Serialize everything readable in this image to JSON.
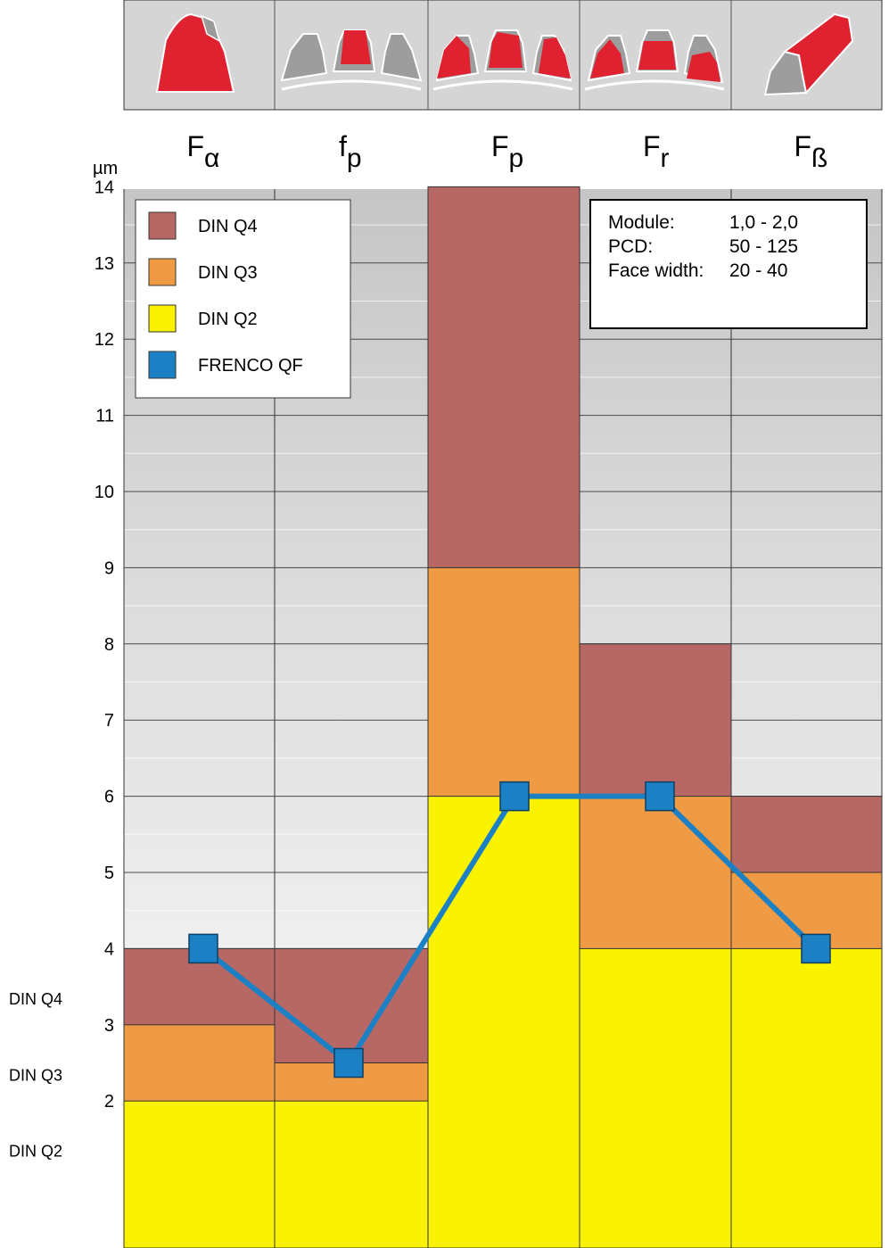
{
  "chart_data": {
    "type": "bar",
    "unit_label": "µm",
    "categories": [
      {
        "main": "F",
        "sub": "α"
      },
      {
        "main": "f",
        "sub": "p"
      },
      {
        "main": "F",
        "sub": "p"
      },
      {
        "main": "F",
        "sub": "r"
      },
      {
        "main": "F",
        "sub": "ß"
      }
    ],
    "ylim": [
      0,
      15
    ],
    "yticks": [
      2,
      3,
      4,
      5,
      6,
      7,
      8,
      9,
      10,
      11,
      12,
      13,
      14
    ],
    "side_labels": [
      {
        "text": "DIN Q4",
        "y": 3.35
      },
      {
        "text": "DIN Q3",
        "y": 2.35
      },
      {
        "text": "DIN Q2",
        "y": 1.35
      }
    ],
    "series": [
      {
        "name": "DIN Q2",
        "values": [
          2,
          2,
          6,
          4,
          4
        ],
        "color": "#f9f200"
      },
      {
        "name": "DIN Q3",
        "values": [
          3,
          2.5,
          9,
          6,
          5
        ],
        "color": "#ef9b45"
      },
      {
        "name": "DIN Q4",
        "values": [
          4,
          4,
          14,
          8,
          6
        ],
        "color": "#b86864"
      }
    ],
    "line_series": {
      "name": "FRENCO QF",
      "values": [
        4,
        2.5,
        6,
        6,
        4
      ],
      "color": "#1b80c4"
    },
    "legend": {
      "placement": "top-left",
      "entries": [
        {
          "label": "DIN Q4",
          "color": "#b86864"
        },
        {
          "label": "DIN Q3",
          "color": "#ef9b45"
        },
        {
          "label": "DIN Q2",
          "color": "#f9f200"
        },
        {
          "label": "FRENCO QF",
          "color": "#1b80c4"
        }
      ]
    },
    "info_box": {
      "placement": "top-right",
      "rows": [
        {
          "key": "Module:",
          "value": "1,0 - 2,0"
        },
        {
          "key": "PCD:",
          "value": "50 - 125"
        },
        {
          "key": "Face width:",
          "value": "20 - 40"
        }
      ]
    },
    "grid": true,
    "background_gradient": [
      "#c6c6c6",
      "#ffffff"
    ],
    "gear_icons": [
      "profile-deviation-tooth-icon",
      "single-pitch-deviation-icon",
      "cumulative-pitch-deviation-icon",
      "runout-deviation-icon",
      "helix-deviation-tooth-icon"
    ]
  }
}
